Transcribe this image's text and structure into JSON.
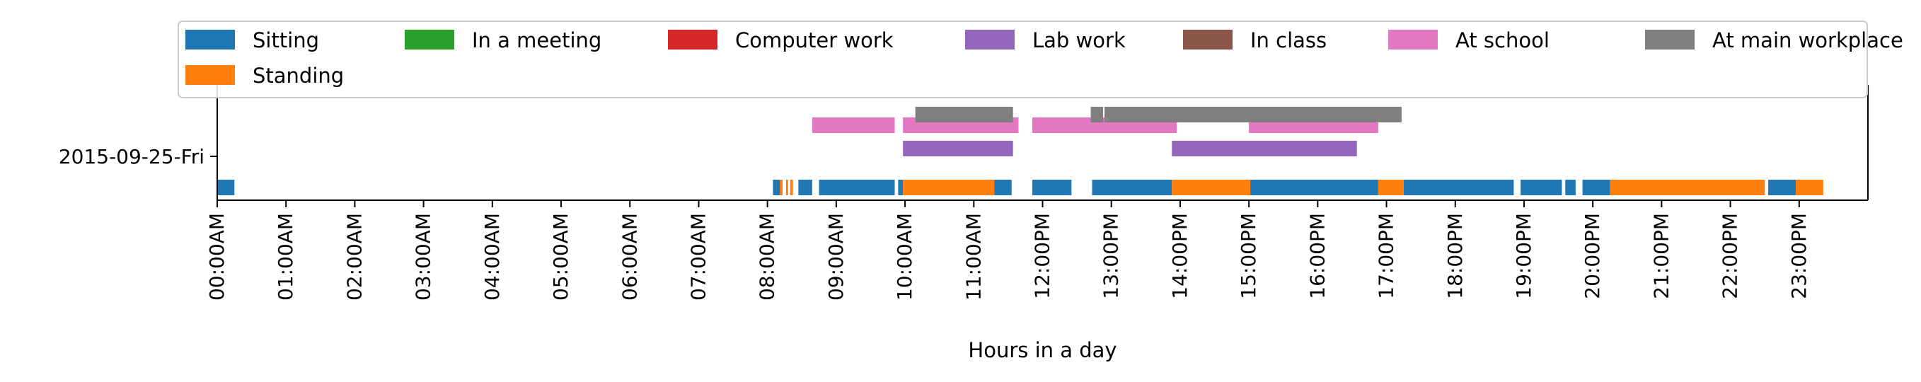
{
  "chart_data": {
    "type": "timeline",
    "xlabel": "Hours in a day",
    "ylabel": "",
    "xlim": [
      0,
      24
    ],
    "rows": [
      "2015-09-25-Fri"
    ],
    "x_ticks": [
      "00:00AM",
      "01:00AM",
      "02:00AM",
      "03:00AM",
      "04:00AM",
      "05:00AM",
      "06:00AM",
      "07:00AM",
      "08:00AM",
      "09:00AM",
      "10:00AM",
      "11:00AM",
      "12:00PM",
      "13:00PM",
      "14:00PM",
      "15:00PM",
      "16:00PM",
      "17:00PM",
      "18:00PM",
      "19:00PM",
      "20:00PM",
      "21:00PM",
      "22:00PM",
      "23:00PM"
    ],
    "legend_position": "top",
    "series": [
      {
        "name": "Sitting",
        "color": "#1f77b4",
        "lane": 0,
        "intervals": [
          [
            0.0,
            0.25
          ],
          [
            8.08,
            8.22
          ],
          [
            8.45,
            8.65
          ],
          [
            8.75,
            9.85
          ],
          [
            9.9,
            9.97
          ],
          [
            11.25,
            11.55
          ],
          [
            11.85,
            12.42
          ],
          [
            12.72,
            13.88
          ],
          [
            15.02,
            16.88
          ],
          [
            17.25,
            18.85
          ],
          [
            18.95,
            19.55
          ],
          [
            19.6,
            19.75
          ],
          [
            19.85,
            20.25
          ],
          [
            22.55,
            23.0
          ]
        ]
      },
      {
        "name": "Standing",
        "color": "#ff7f0e",
        "lane": 0,
        "intervals": [
          [
            8.18,
            8.22
          ],
          [
            8.27,
            8.3
          ],
          [
            8.33,
            8.37
          ],
          [
            9.97,
            11.3
          ],
          [
            13.88,
            15.02
          ],
          [
            16.88,
            17.25
          ],
          [
            20.25,
            22.5
          ],
          [
            22.95,
            23.35
          ]
        ]
      },
      {
        "name": "In a meeting",
        "color": "#2ca02c",
        "lane": 1,
        "intervals": []
      },
      {
        "name": "Computer work",
        "color": "#d62728",
        "lane": 1,
        "intervals": []
      },
      {
        "name": "Lab work",
        "color": "#9467bd",
        "lane": 1,
        "intervals": [
          [
            9.97,
            11.57
          ],
          [
            13.88,
            16.57
          ]
        ]
      },
      {
        "name": "In class",
        "color": "#8c564b",
        "lane": 2,
        "intervals": []
      },
      {
        "name": "At school",
        "color": "#e377c2",
        "lane": 2,
        "intervals": [
          [
            8.65,
            9.85
          ],
          [
            9.97,
            11.65
          ],
          [
            11.85,
            13.95
          ],
          [
            15.0,
            16.88
          ]
        ]
      },
      {
        "name": "At main workplace",
        "color": "#7f7f7f",
        "lane": 3,
        "intervals": [
          [
            10.15,
            11.57
          ],
          [
            12.7,
            12.88
          ],
          [
            12.9,
            17.22
          ]
        ]
      }
    ]
  }
}
